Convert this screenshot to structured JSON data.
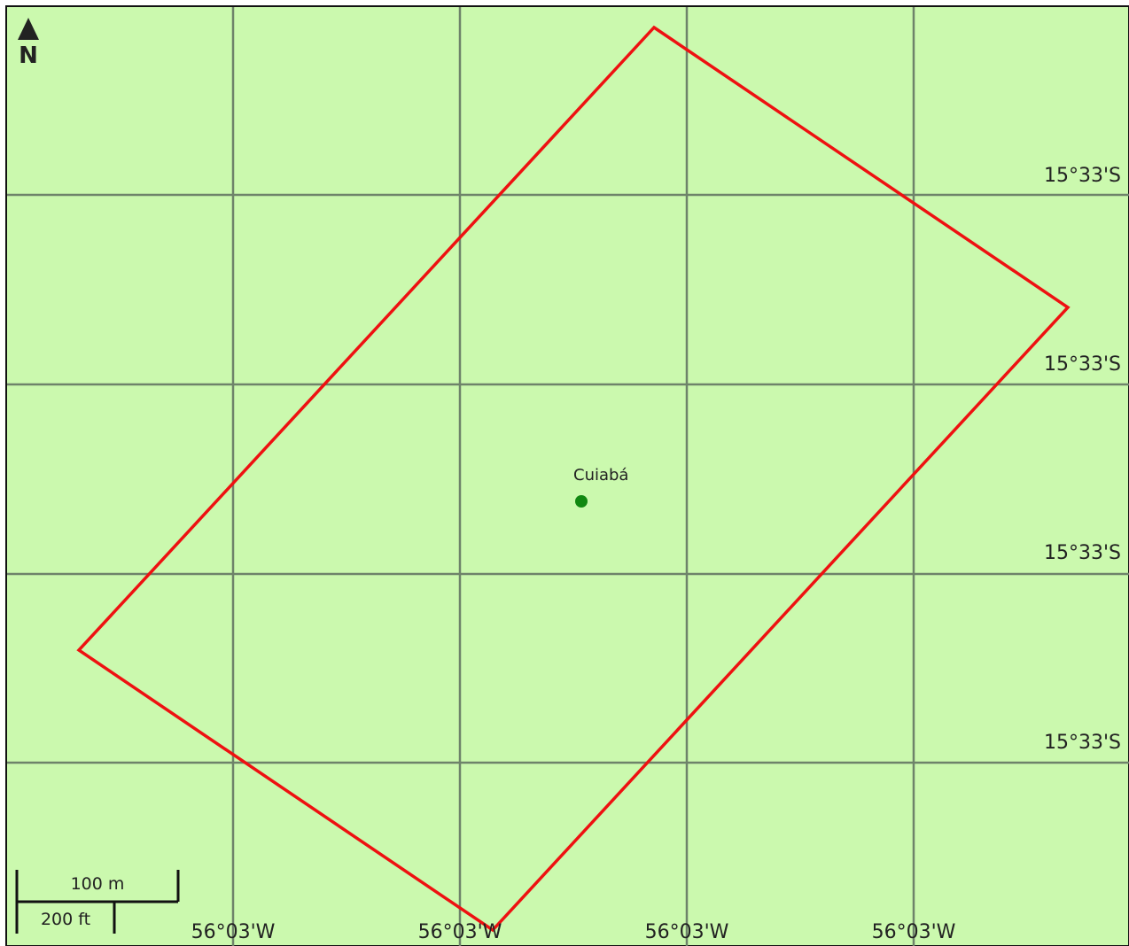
{
  "map": {
    "background_color": "#cbf9ae",
    "grid_color": "#6e836a",
    "boundary_color": "#ee1111",
    "city_dot_color": "#118811",
    "north_label": "N",
    "latitude_labels": [
      "15°33'S",
      "15°33'S",
      "15°33'S",
      "15°33'S"
    ],
    "longitude_labels": [
      "56°03'W",
      "56°03'W",
      "56°03'W",
      "56°03'W"
    ],
    "city": {
      "name": "Cuiabá"
    },
    "scale_bar": {
      "metric_label": "100 m",
      "imperial_label": "200 ft"
    }
  }
}
